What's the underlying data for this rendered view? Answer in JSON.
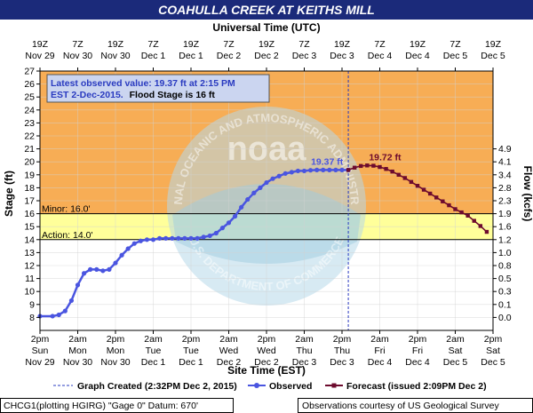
{
  "title": "COAHULLA CREEK AT KEITHS MILL",
  "colors": {
    "title_bar": "#1b2a7a",
    "title_text": "#ffffff",
    "major": "#f5a54a",
    "minor_band": "#f7ad55",
    "action_band": "#ffff9a",
    "normal_band": "#ffffff",
    "observed": "#4a55e0",
    "forecast": "#6d0b2e",
    "grid": "#d1d1d1",
    "info_box": "#cbd5f0"
  },
  "chart_data": {
    "type": "line",
    "top_axis_title": "Universal Time (UTC)",
    "xlabel": "Site Time (EST)",
    "ylabel": "Stage (ft)",
    "y2label": "Flow (kcfs)",
    "ylim": [
      7,
      27
    ],
    "xlim": [
      0,
      36
    ],
    "grid": true,
    "top_ticks": [
      [
        "19Z",
        "Nov 29"
      ],
      [
        "7Z",
        "Nov 30"
      ],
      [
        "19Z",
        "Nov 30"
      ],
      [
        "7Z",
        "Dec 1"
      ],
      [
        "19Z",
        "Dec 1"
      ],
      [
        "7Z",
        "Dec 2"
      ],
      [
        "19Z",
        "Dec 2"
      ],
      [
        "7Z",
        "Dec 3"
      ],
      [
        "19Z",
        "Dec 3"
      ],
      [
        "7Z",
        "Dec 4"
      ],
      [
        "19Z",
        "Dec 4"
      ],
      [
        "7Z",
        "Dec 5"
      ],
      [
        "19Z",
        "Dec 5"
      ]
    ],
    "bottom_ticks": [
      [
        "2pm",
        "Sun",
        "Nov 29"
      ],
      [
        "2am",
        "Mon",
        "Nov 30"
      ],
      [
        "2pm",
        "Mon",
        "Nov 30"
      ],
      [
        "2am",
        "Tue",
        "Dec 1"
      ],
      [
        "2pm",
        "Tue",
        "Dec 1"
      ],
      [
        "2am",
        "Wed",
        "Dec 2"
      ],
      [
        "2pm",
        "Wed",
        "Dec 2"
      ],
      [
        "2am",
        "Thu",
        "Dec 3"
      ],
      [
        "2pm",
        "Thu",
        "Dec 3"
      ],
      [
        "2am",
        "Fri",
        "Dec 4"
      ],
      [
        "2pm",
        "Fri",
        "Dec 4"
      ],
      [
        "2am",
        "Sat",
        "Dec 5"
      ],
      [
        "2pm",
        "Sat",
        "Dec 5"
      ]
    ],
    "y_ticks": [
      8,
      9,
      10,
      11,
      12,
      13,
      14,
      15,
      16,
      17,
      18,
      19,
      20,
      21,
      22,
      23,
      24,
      25,
      26,
      27
    ],
    "flow_ticks": [
      [
        8,
        "0.0"
      ],
      [
        9,
        "0.1"
      ],
      [
        10,
        "0.3"
      ],
      [
        11,
        "0.5"
      ],
      [
        12,
        "0.8"
      ],
      [
        13,
        "1.0"
      ],
      [
        14,
        "1.2"
      ],
      [
        15,
        "1.6"
      ],
      [
        16,
        "1.9"
      ],
      [
        17,
        "2.3"
      ],
      [
        18,
        "2.8"
      ],
      [
        19,
        "3.4"
      ],
      [
        20,
        "4.1"
      ],
      [
        21,
        "4.9"
      ]
    ],
    "flood_categories": [
      {
        "label": "Minor: 16.0'",
        "stage": 16.0
      },
      {
        "label": "Action: 14.0'",
        "stage": 14.0
      }
    ],
    "graph_created_x": 24.5,
    "observed": {
      "name": "Observed",
      "x": [
        0,
        1,
        1.5,
        2,
        2.5,
        3,
        3.5,
        4,
        4.5,
        5,
        5.5,
        6,
        6.5,
        7,
        7.5,
        8,
        8.5,
        9,
        9.5,
        10,
        10.5,
        11,
        11.5,
        12,
        12.5,
        13,
        13.5,
        14,
        14.5,
        15,
        15.5,
        16,
        16.5,
        17,
        17.5,
        18,
        18.5,
        19,
        19.5,
        20,
        20.5,
        21,
        21.5,
        22,
        22.5,
        23,
        23.5,
        24,
        24.5
      ],
      "y": [
        8.1,
        8.1,
        8.2,
        8.5,
        9.3,
        10.5,
        11.4,
        11.7,
        11.7,
        11.6,
        11.7,
        12.2,
        12.8,
        13.3,
        13.7,
        13.9,
        14.0,
        14.0,
        14.1,
        14.1,
        14.1,
        14.1,
        14.1,
        14.1,
        14.1,
        14.2,
        14.3,
        14.5,
        14.9,
        15.3,
        15.8,
        16.5,
        17.1,
        17.6,
        18.0,
        18.4,
        18.7,
        18.9,
        19.1,
        19.2,
        19.3,
        19.3,
        19.35,
        19.37,
        19.37,
        19.37,
        19.37,
        19.37,
        19.37
      ]
    },
    "forecast": {
      "name": "Forecast (issued 2:09PM Dec 2)",
      "x": [
        24.5,
        25,
        25.5,
        26,
        26.5,
        27,
        27.5,
        28,
        28.5,
        29,
        29.5,
        30,
        30.5,
        31,
        31.5,
        32,
        32.5,
        33,
        33.5,
        34,
        34.5,
        35,
        35.5
      ],
      "y": [
        19.37,
        19.55,
        19.68,
        19.72,
        19.7,
        19.6,
        19.45,
        19.25,
        19.0,
        18.75,
        18.45,
        18.15,
        17.85,
        17.55,
        17.25,
        16.95,
        16.65,
        16.35,
        16.1,
        15.85,
        15.45,
        15.05,
        14.6
      ]
    },
    "annotations": {
      "observed_value": "19.37 ft",
      "forecast_peak": "19.72 ft",
      "forecast_peak_x": 26
    },
    "info_line1": "Latest observed value: 19.37 ft at 2:15 PM",
    "info_line2a": "EST 2-Dec-2015.",
    "info_line2b": "Flood Stage is 16 ft",
    "watermark_top": "NATIONAL OCEANIC AND ATMOSPHERIC ADMINISTRATION",
    "watermark_bottom": "U.S. DEPARTMENT OF COMMERCE",
    "watermark_noaa": "noaa"
  },
  "legend": {
    "graph_created": "Graph Created (2:32PM Dec 2, 2015)",
    "observed": "Observed",
    "forecast": "Forecast (issued 2:09PM Dec 2)"
  },
  "footer": {
    "left": "CHCG1(plotting HGIRG) \"Gage 0\" Datum: 670'",
    "right": "Observations courtesy of US Geological Survey"
  }
}
